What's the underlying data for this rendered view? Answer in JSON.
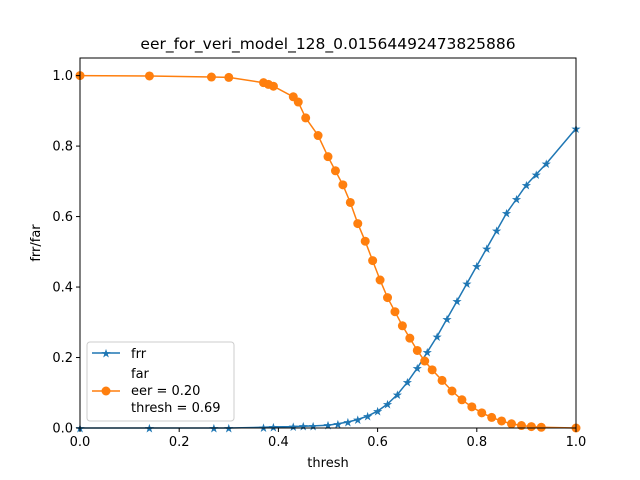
{
  "chart_data": {
    "type": "line",
    "title": "eer_for_veri_model_128_0.01564492473825886",
    "xlabel": "thresh",
    "ylabel": "frr/far",
    "xlim": [
      0.0,
      1.0
    ],
    "ylim": [
      0.0,
      1.05
    ],
    "xticks": [
      "0.0",
      "0.2",
      "0.4",
      "0.6",
      "0.8",
      "1.0"
    ],
    "yticks": [
      "0.0",
      "0.2",
      "0.4",
      "0.6",
      "0.8",
      "1.0"
    ],
    "grid": false,
    "legend_position": "lower-left",
    "legend": {
      "entries": [
        "frr",
        "far"
      ],
      "extra_lines": [
        "eer = 0.20",
        "thresh = 0.69"
      ]
    },
    "series": [
      {
        "name": "frr",
        "color": "#1f77b4",
        "marker": "star",
        "x": [
          0.0,
          0.14,
          0.27,
          0.3,
          0.37,
          0.39,
          0.43,
          0.45,
          0.47,
          0.5,
          0.52,
          0.54,
          0.56,
          0.58,
          0.6,
          0.62,
          0.64,
          0.66,
          0.68,
          0.7,
          0.72,
          0.74,
          0.76,
          0.78,
          0.8,
          0.82,
          0.84,
          0.86,
          0.88,
          0.9,
          0.92,
          0.94,
          1.0
        ],
        "y": [
          0.0,
          0.0,
          0.0,
          0.0,
          0.002,
          0.003,
          0.004,
          0.005,
          0.006,
          0.008,
          0.012,
          0.017,
          0.024,
          0.034,
          0.048,
          0.068,
          0.095,
          0.13,
          0.17,
          0.215,
          0.26,
          0.31,
          0.36,
          0.41,
          0.46,
          0.51,
          0.56,
          0.61,
          0.65,
          0.69,
          0.72,
          0.75,
          0.85
        ]
      },
      {
        "name": "far",
        "color": "#ff7f0e",
        "marker": "circle",
        "x": [
          0.0,
          0.14,
          0.265,
          0.3,
          0.37,
          0.38,
          0.39,
          0.43,
          0.44,
          0.455,
          0.48,
          0.5,
          0.515,
          0.53,
          0.545,
          0.56,
          0.575,
          0.59,
          0.605,
          0.62,
          0.635,
          0.65,
          0.665,
          0.68,
          0.695,
          0.71,
          0.73,
          0.75,
          0.77,
          0.79,
          0.81,
          0.83,
          0.85,
          0.87,
          0.89,
          0.91,
          0.93,
          1.0
        ],
        "y": [
          1.0,
          0.999,
          0.996,
          0.995,
          0.98,
          0.975,
          0.97,
          0.94,
          0.925,
          0.88,
          0.83,
          0.77,
          0.73,
          0.69,
          0.64,
          0.58,
          0.53,
          0.475,
          0.42,
          0.37,
          0.33,
          0.29,
          0.255,
          0.22,
          0.19,
          0.165,
          0.135,
          0.105,
          0.08,
          0.06,
          0.043,
          0.03,
          0.02,
          0.012,
          0.007,
          0.004,
          0.002,
          0.0
        ]
      }
    ]
  }
}
